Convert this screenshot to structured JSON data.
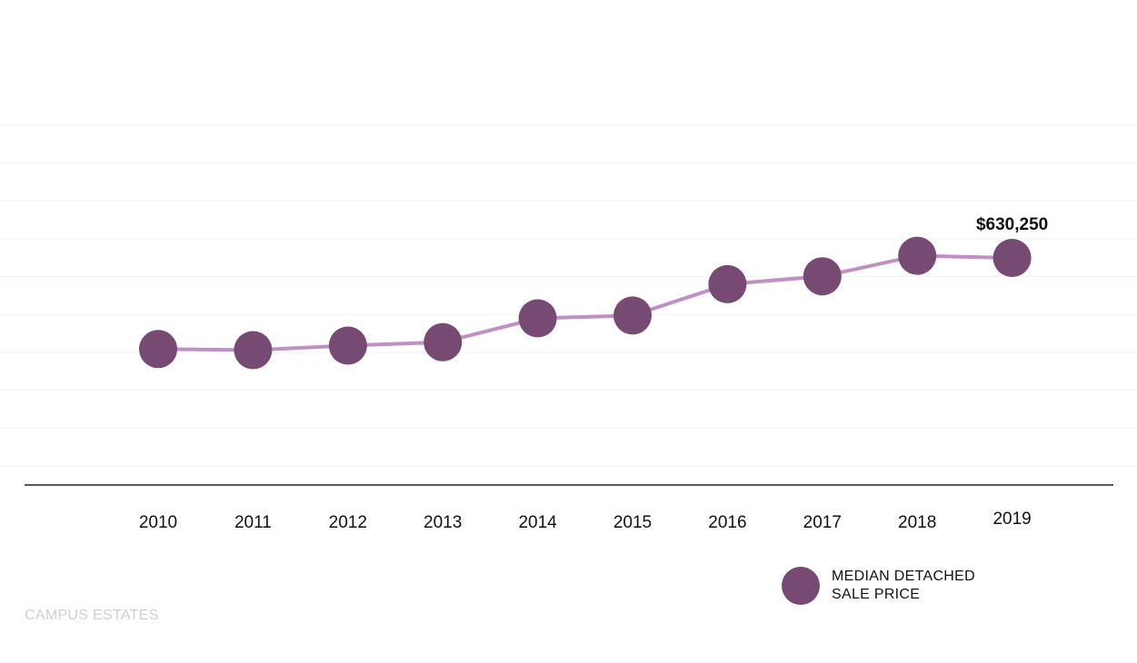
{
  "chart_data": {
    "type": "line",
    "title": "",
    "xlabel": "",
    "ylabel": "",
    "categories": [
      "2010",
      "2011",
      "2012",
      "2013",
      "2014",
      "2015",
      "2016",
      "2017",
      "2018",
      "2019"
    ],
    "series": [
      {
        "name": "MEDIAN DETACHED SALE PRICE",
        "values": [
          363000,
          362000,
          366000,
          369000,
          390000,
          392500,
          420000,
          427000,
          445000,
          630250
        ]
      }
    ],
    "data_labels": [
      {
        "index": 9,
        "text": "$630,250"
      }
    ],
    "ylim": [
      260000,
      560000
    ],
    "grid": "horizontal",
    "legend_position": "bottom-right",
    "colors": {
      "marker": "#764a73",
      "line": "#c08fc4",
      "grid": "#f2f2f2",
      "axis": "#222222"
    }
  },
  "legend": {
    "label": "MEDIAN DETACHED SALE PRICE"
  },
  "watermark": {
    "text": "CAMPUS ESTATES"
  }
}
